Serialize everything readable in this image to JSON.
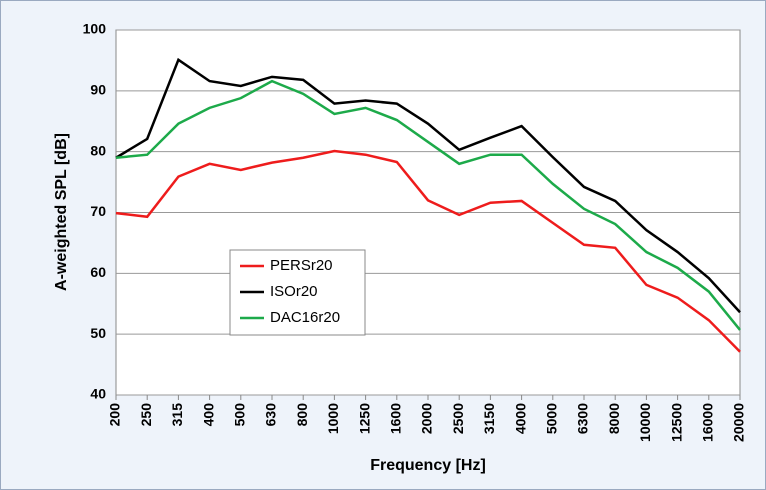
{
  "chart_data": {
    "type": "line",
    "xlabel": "Frequency [Hz]",
    "ylabel": "A-weighted SPL [dB]",
    "categories": [
      "200",
      "250",
      "315",
      "400",
      "500",
      "630",
      "800",
      "1000",
      "1250",
      "1600",
      "2000",
      "2500",
      "3150",
      "4000",
      "5000",
      "6300",
      "8000",
      "10000",
      "12500",
      "16000",
      "20000"
    ],
    "series": [
      {
        "name": "PERSr20",
        "color": "#ee1c1c",
        "values": [
          69.9,
          69.3,
          75.9,
          78,
          77,
          78.2,
          79,
          80.1,
          79.5,
          78.3,
          72,
          69.6,
          71.6,
          71.9,
          68.3,
          64.7,
          64.2,
          58.1,
          56,
          52.3,
          47.1
        ]
      },
      {
        "name": "ISOr20",
        "color": "#000000",
        "values": [
          79,
          82.1,
          95.1,
          91.6,
          90.8,
          92.3,
          91.8,
          87.9,
          88.4,
          87.9,
          84.6,
          80.3,
          82.3,
          84.2,
          79.1,
          74.2,
          71.9,
          67.1,
          63.5,
          59.2,
          53.6
        ]
      },
      {
        "name": "DAC16r20",
        "color": "#1daa4a",
        "values": [
          79,
          79.5,
          84.6,
          87.2,
          88.8,
          91.6,
          89.5,
          86.2,
          87.2,
          85.2,
          81.6,
          78,
          79.5,
          79.5,
          74.7,
          70.6,
          68.1,
          63.5,
          60.9,
          57,
          50.7
        ]
      }
    ],
    "ylim": [
      40,
      100
    ],
    "yticks": [
      40,
      50,
      60,
      70,
      80,
      90,
      100
    ],
    "grid": true
  }
}
